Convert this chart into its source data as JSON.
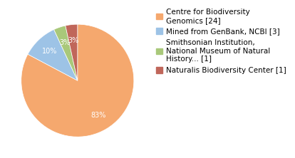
{
  "labels": [
    "Centre for Biodiversity\nGenomics [24]",
    "Mined from GenBank, NCBI [3]",
    "Smithsonian Institution,\nNational Museum of Natural\nHistory... [1]",
    "Naturalis Biodiversity Center [1]"
  ],
  "values": [
    24,
    3,
    1,
    1
  ],
  "colors": [
    "#F5A86E",
    "#9DC3E6",
    "#A9C87A",
    "#C0665A"
  ],
  "background_color": "#ffffff",
  "fontsize_pct": 7,
  "fontsize_legend": 7.5
}
